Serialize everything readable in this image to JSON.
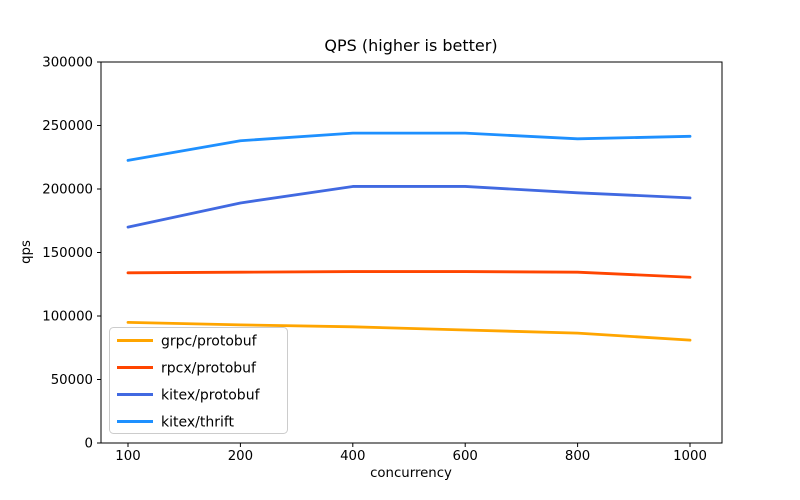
{
  "chart_data": {
    "type": "line",
    "title": "QPS (higher is better)",
    "xlabel": "concurrency",
    "ylabel": "qps",
    "categories": [
      "100",
      "200",
      "400",
      "600",
      "800",
      "1000"
    ],
    "x_spacing": "even",
    "ylim": [
      0,
      300000
    ],
    "y_ticks": [
      0,
      50000,
      100000,
      150000,
      200000,
      250000,
      300000
    ],
    "grid": false,
    "legend_position": "lower-left",
    "series": [
      {
        "name": "grpc/protobuf",
        "color": "#FFA500",
        "values": [
          95000,
          93000,
          91500,
          89000,
          86500,
          81000
        ]
      },
      {
        "name": "rpcx/protobuf",
        "color": "#FF4500",
        "values": [
          134000,
          134500,
          135000,
          135000,
          134500,
          130500
        ]
      },
      {
        "name": "kitex/protobuf",
        "color": "#4169E1",
        "values": [
          170000,
          189000,
          202000,
          202000,
          197000,
          193000
        ]
      },
      {
        "name": "kitex/thrift",
        "color": "#1E90FF",
        "values": [
          222500,
          238000,
          244000,
          244000,
          239500,
          241500
        ]
      }
    ]
  }
}
